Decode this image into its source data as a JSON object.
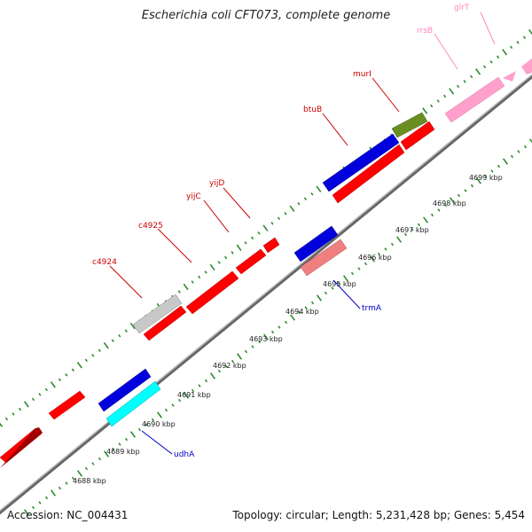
{
  "title": "Escherichia coli CFT073, complete genome",
  "accession": "Accession: NC_004431",
  "topology": "Topology: circular; Length: 5,231,428 bp; Genes: 5,454",
  "colors": {
    "backbone": "#8f8f8f",
    "ticks_green": "#2e8b2e",
    "gene_red": "#ff0000",
    "gene_blue": "#0000dd",
    "gene_cyan": "#00ffff",
    "gene_gray": "#c8c8c8",
    "gene_olive": "#6b8e23",
    "gene_salmon": "#f08080",
    "gene_pink": "#ffa0cc",
    "label_red": "#cc0000",
    "label_blue": "#0000cc",
    "label_pink": "#ff88bb"
  },
  "scale_labels": [
    "4688 kbp",
    "4689 kbp",
    "4690 kbp",
    "4691 kbp",
    "4692 kbp",
    "4693 kbp",
    "4694 kbp",
    "4695 kbp",
    "4696 kbp",
    "4697 kbp",
    "4698 kbp",
    "4699 kbp"
  ],
  "gene_labels": [
    {
      "text": "glrT",
      "color": "pink"
    },
    {
      "text": "rrsB",
      "color": "pink"
    },
    {
      "text": "murI",
      "color": "red"
    },
    {
      "text": "btuB",
      "color": "red"
    },
    {
      "text": "yijD",
      "color": "red"
    },
    {
      "text": "yijC",
      "color": "red"
    },
    {
      "text": "c4925",
      "color": "red"
    },
    {
      "text": "c4924",
      "color": "red"
    },
    {
      "text": "trmA",
      "color": "blue"
    },
    {
      "text": "udhA",
      "color": "blue"
    }
  ]
}
